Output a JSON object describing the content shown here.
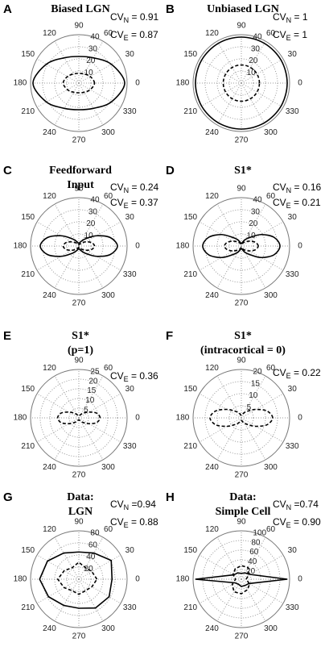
{
  "chart_data": [
    {
      "type": "polar",
      "panel": "A",
      "title": [
        "Biased LGN"
      ],
      "annotations": [
        {
          "base": "CV",
          "sub": "N",
          "text": " = 0.91"
        },
        {
          "base": "CV",
          "sub": "E",
          "text": " = 0.87"
        }
      ],
      "rlim": [
        0,
        40
      ],
      "rticks": [
        10,
        20,
        30,
        40
      ],
      "xticks": [
        0,
        30,
        60,
        90,
        120,
        150,
        180,
        210,
        240,
        270,
        300,
        330
      ],
      "x": [
        0,
        30,
        60,
        90,
        120,
        150,
        180,
        210,
        240,
        270,
        300,
        330
      ],
      "smooth": true,
      "series": [
        {
          "color": "#000000",
          "line_style": "solid",
          "values": [
            38,
            31.1,
            24.1,
            22,
            24.1,
            31.1,
            38,
            31.1,
            24.1,
            22,
            24.1,
            31.1
          ]
        },
        {
          "color": "#000000",
          "line_style": "dashed",
          "values": [
            13,
            10.9,
            8.7,
            8,
            8.7,
            10.9,
            13,
            10.9,
            8.7,
            8,
            8.7,
            10.9
          ]
        }
      ]
    },
    {
      "type": "polar",
      "panel": "B",
      "title": [
        "Unbiased LGN"
      ],
      "annotations": [
        {
          "base": "CV",
          "sub": "N",
          "text": " = 1"
        },
        {
          "base": "CV",
          "sub": "E",
          "text": " = 1"
        }
      ],
      "rlim": [
        0,
        40
      ],
      "rticks": [
        10,
        20,
        30,
        40
      ],
      "xticks": [
        0,
        30,
        60,
        90,
        120,
        150,
        180,
        210,
        240,
        270,
        300,
        330
      ],
      "x": [
        0,
        30,
        60,
        90,
        120,
        150,
        180,
        210,
        240,
        270,
        300,
        330
      ],
      "smooth": true,
      "series": [
        {
          "color": "#000000",
          "line_style": "solid",
          "values": [
            38,
            38,
            38,
            38,
            38,
            38,
            38,
            38,
            38,
            38,
            38,
            38
          ]
        },
        {
          "color": "#000000",
          "line_style": "dashed",
          "values": [
            15,
            15,
            15,
            15,
            15,
            15,
            15,
            15,
            15,
            15,
            15,
            15
          ]
        }
      ]
    },
    {
      "type": "polar",
      "panel": "C",
      "title": [
        "Feedforward",
        "Input"
      ],
      "annotations": [
        {
          "base": "CV",
          "sub": "N",
          "text": " = 0.24"
        },
        {
          "base": "CV",
          "sub": "E",
          "text": " = 0.37"
        }
      ],
      "rlim": [
        0,
        40
      ],
      "rticks": [
        10,
        20,
        30,
        40
      ],
      "xticks": [
        0,
        30,
        60,
        90,
        120,
        150,
        180,
        210,
        240,
        270,
        300,
        330
      ],
      "x": [
        0,
        15,
        30,
        45,
        60,
        75,
        90,
        105,
        120,
        135,
        150,
        165,
        180,
        195,
        210,
        225,
        240,
        255,
        270,
        285,
        300,
        315,
        330,
        345
      ],
      "smooth": true,
      "series": [
        {
          "color": "#000000",
          "line_style": "solid",
          "values": [
            32,
            27,
            17,
            9,
            5,
            3,
            2,
            3,
            5,
            9,
            17,
            27,
            32,
            27,
            17,
            9,
            5,
            3,
            2,
            3,
            5,
            9,
            17,
            27
          ]
        },
        {
          "color": "#000000",
          "line_style": "dashed",
          "values": [
            13,
            11,
            7,
            4,
            2,
            1.5,
            1,
            1.5,
            2,
            4,
            7,
            11,
            13,
            11,
            7,
            4,
            2,
            1.5,
            1,
            1.5,
            2,
            4,
            7,
            11
          ]
        }
      ]
    },
    {
      "type": "polar",
      "panel": "D",
      "title": [
        "S1*"
      ],
      "annotations": [
        {
          "base": "CV",
          "sub": "N",
          "text": " = 0.16"
        },
        {
          "base": "CV",
          "sub": "E",
          "text": " = 0.21"
        }
      ],
      "rlim": [
        0,
        40
      ],
      "rticks": [
        10,
        20,
        30,
        40
      ],
      "xticks": [
        0,
        30,
        60,
        90,
        120,
        150,
        180,
        210,
        240,
        270,
        300,
        330
      ],
      "x": [
        0,
        15,
        30,
        45,
        60,
        75,
        90,
        105,
        120,
        135,
        150,
        165,
        180,
        195,
        210,
        225,
        240,
        255,
        270,
        285,
        300,
        315,
        330,
        345
      ],
      "smooth": true,
      "series": [
        {
          "color": "#000000",
          "line_style": "solid",
          "values": [
            32,
            28,
            19,
            10,
            6,
            3,
            2,
            3,
            6,
            10,
            19,
            28,
            32,
            28,
            19,
            10,
            6,
            3,
            2,
            3,
            6,
            10,
            19,
            28
          ]
        },
        {
          "color": "#000000",
          "line_style": "dashed",
          "values": [
            14,
            12,
            8,
            5,
            3,
            2,
            1,
            2,
            3,
            5,
            8,
            12,
            14,
            12,
            8,
            5,
            3,
            2,
            1,
            2,
            3,
            5,
            8,
            12
          ]
        }
      ]
    },
    {
      "type": "polar",
      "panel": "E",
      "title": [
        "S1*",
        "(p=1)"
      ],
      "annotations": [
        {
          "base": "CV",
          "sub": "E",
          "text": " = 0.36"
        }
      ],
      "rlim": [
        0,
        25
      ],
      "rticks": [
        5,
        10,
        15,
        20,
        25
      ],
      "xticks": [
        0,
        30,
        60,
        90,
        120,
        150,
        180,
        210,
        240,
        270,
        300,
        330
      ],
      "x": [
        0,
        15,
        30,
        45,
        60,
        75,
        90,
        105,
        120,
        135,
        150,
        165,
        180,
        195,
        210,
        225,
        240,
        255,
        270,
        285,
        300,
        315,
        330,
        345
      ],
      "smooth": true,
      "series": [
        {
          "color": "#000000",
          "line_style": "dashed",
          "values": [
            11,
            9.5,
            6,
            3.5,
            2,
            1.2,
            1,
            1.2,
            2,
            3.5,
            6,
            9.5,
            11,
            9.5,
            6,
            3.5,
            2,
            1.2,
            1,
            1.2,
            2,
            3.5,
            6,
            9.5
          ]
        }
      ]
    },
    {
      "type": "polar",
      "panel": "F",
      "title": [
        "S1*",
        "(intracortical = 0)"
      ],
      "annotations": [
        {
          "base": "CV",
          "sub": "E",
          "text": " = 0.22"
        }
      ],
      "rlim": [
        0,
        20
      ],
      "rticks": [
        5,
        10,
        15,
        20
      ],
      "xticks": [
        0,
        30,
        60,
        90,
        120,
        150,
        180,
        210,
        240,
        270,
        300,
        330
      ],
      "x": [
        0,
        15,
        30,
        45,
        60,
        75,
        90,
        105,
        120,
        135,
        150,
        165,
        180,
        195,
        210,
        225,
        240,
        255,
        270,
        285,
        300,
        315,
        330,
        345
      ],
      "smooth": true,
      "series": [
        {
          "color": "#000000",
          "line_style": "dashed",
          "values": [
            13,
            11,
            7,
            4,
            2.5,
            1.5,
            1,
            1.5,
            2.5,
            4,
            7,
            11,
            13,
            11,
            7,
            4,
            2.5,
            1.5,
            1,
            1.5,
            2.5,
            4,
            7,
            11
          ]
        }
      ]
    },
    {
      "type": "polar",
      "panel": "G",
      "title": [
        "Data:",
        "LGN"
      ],
      "annotations": [
        {
          "base": "CV",
          "sub": "N",
          "text": " =0.94"
        },
        {
          "base": "CV",
          "sub": "E",
          "text": " = 0.88"
        }
      ],
      "rlim": [
        0,
        80
      ],
      "rticks": [
        20,
        40,
        60,
        80
      ],
      "xticks": [
        0,
        30,
        60,
        90,
        120,
        150,
        180,
        210,
        240,
        270,
        300,
        330
      ],
      "x": [
        0,
        30,
        60,
        90,
        120,
        150,
        180,
        210,
        240,
        270,
        300,
        330
      ],
      "smooth": false,
      "series": [
        {
          "color": "#000000",
          "line_style": "solid",
          "values": [
            55,
            62,
            50,
            45,
            50,
            60,
            65,
            58,
            50,
            48,
            55,
            58
          ]
        },
        {
          "color": "#000000",
          "line_style": "dashed",
          "values": [
            30,
            25,
            22,
            28,
            22,
            28,
            35,
            28,
            22,
            25,
            22,
            25
          ]
        }
      ]
    },
    {
      "type": "polar",
      "panel": "H",
      "title": [
        "Data:",
        "Simple Cell"
      ],
      "annotations": [
        {
          "base": "CV",
          "sub": "N",
          "text": " =0.74"
        },
        {
          "base": "CV",
          "sub": "E",
          "text": " = 0.90"
        }
      ],
      "rlim": [
        0,
        100
      ],
      "rticks": [
        20,
        40,
        60,
        80,
        100
      ],
      "xticks": [
        0,
        30,
        60,
        90,
        120,
        150,
        180,
        210,
        240,
        270,
        300,
        330
      ],
      "x": [
        0,
        30,
        60,
        90,
        120,
        150,
        180,
        210,
        240,
        270,
        300,
        330
      ],
      "smooth": false,
      "series": [
        {
          "color": "#000000",
          "line_style": "solid",
          "values": [
            95,
            20,
            15,
            12,
            15,
            18,
            95,
            15,
            12,
            15,
            15,
            18
          ]
        },
        {
          "color": "#000000",
          "line_style": "dashed",
          "values": [
            10,
            18,
            28,
            28,
            25,
            20,
            12,
            22,
            30,
            30,
            25,
            20
          ]
        }
      ]
    }
  ]
}
